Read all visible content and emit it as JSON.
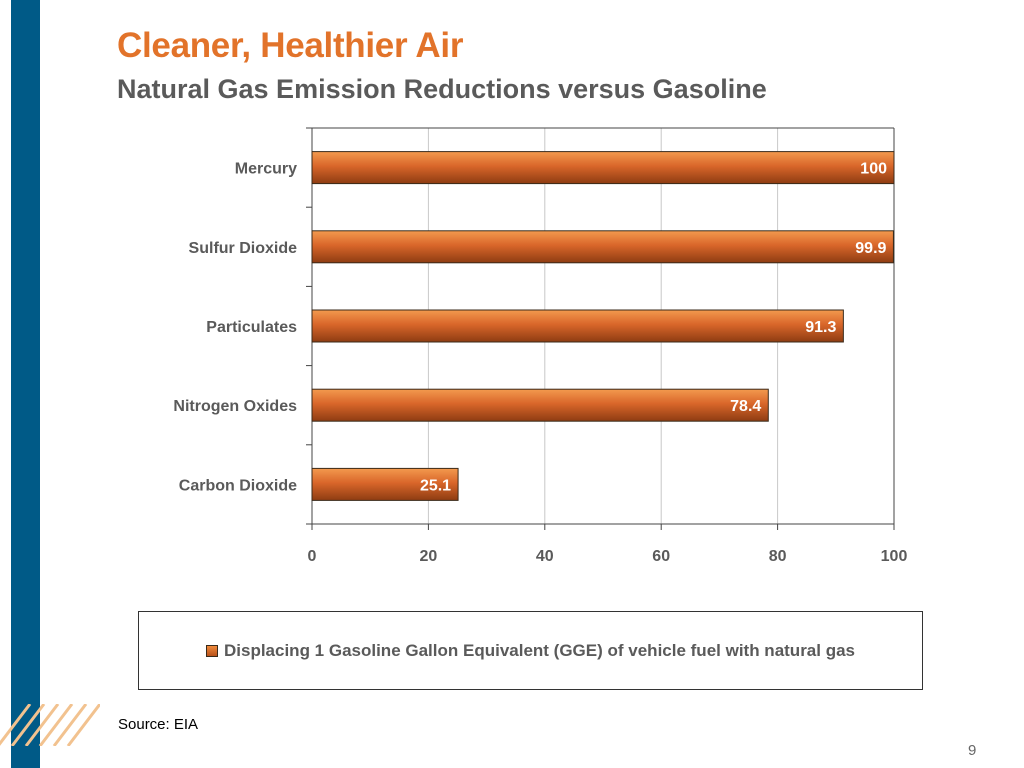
{
  "slide": {
    "title": "Cleaner, Healthier Air",
    "subtitle": "Natural Gas Emission Reductions versus Gasoline",
    "source": "Source: EIA",
    "page_number": "9"
  },
  "colors": {
    "accent": "#e2732a",
    "bar": "#d9662a",
    "sidebar": "#005a87",
    "text": "#5a5a5a"
  },
  "chart_data": {
    "type": "bar",
    "orientation": "horizontal",
    "categories": [
      "Mercury",
      "Sulfur Dioxide",
      "Particulates",
      "Nitrogen Oxides",
      "Carbon Dioxide"
    ],
    "series": [
      {
        "name": "Displacing 1 Gasoline Gallon Equivalent (GGE) of vehicle fuel with natural gas",
        "values": [
          100,
          99.9,
          91.3,
          78.4,
          25.1
        ]
      }
    ],
    "value_labels": [
      "100",
      "99.9",
      "91.3",
      "78.4",
      "25.1"
    ],
    "x_ticks": [
      "0",
      "20",
      "40",
      "60",
      "80",
      "100"
    ],
    "xlim": [
      0,
      100
    ],
    "grid": true,
    "legend_position": "bottom"
  }
}
